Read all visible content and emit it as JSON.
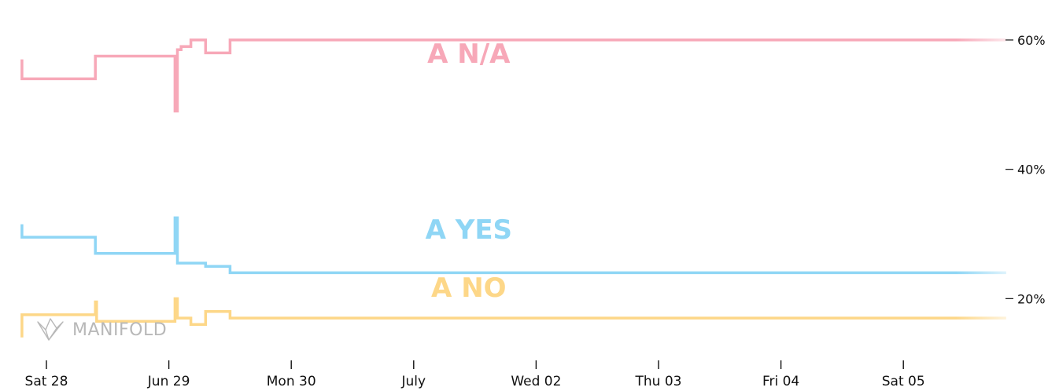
{
  "chart_data": {
    "type": "line",
    "x_ticks": [
      "Sat 28",
      "Jun 29",
      "Mon 30",
      "July",
      "Wed 02",
      "Thu 03",
      "Fri 04",
      "Sat 05"
    ],
    "y_ticks": [
      "20%",
      "40%",
      "60%"
    ],
    "ylim": [
      13,
      64
    ],
    "xlim": [
      -0.21,
      7.84
    ],
    "y_axis_position": "right",
    "grid": false,
    "legend": "inline labels",
    "series": [
      {
        "name": "A N/A",
        "color": "#f7a8b8",
        "points": [
          [
            -0.2,
            57
          ],
          [
            -0.2,
            54
          ],
          [
            0.4,
            54
          ],
          [
            0.4,
            57.5
          ],
          [
            1.05,
            57.5
          ],
          [
            1.05,
            49
          ],
          [
            1.07,
            49
          ],
          [
            1.07,
            58.5
          ],
          [
            1.1,
            58.5
          ],
          [
            1.1,
            59
          ],
          [
            1.18,
            59
          ],
          [
            1.18,
            60
          ],
          [
            1.3,
            60
          ],
          [
            1.3,
            58
          ],
          [
            1.5,
            58
          ],
          [
            1.5,
            60
          ],
          [
            7.84,
            60
          ]
        ]
      },
      {
        "name": "A YES",
        "color": "#8fd6f5",
        "points": [
          [
            -0.2,
            31.5
          ],
          [
            -0.2,
            29.5
          ],
          [
            0.4,
            29.5
          ],
          [
            0.4,
            27
          ],
          [
            1.05,
            27
          ],
          [
            1.05,
            32.5
          ],
          [
            1.07,
            32.5
          ],
          [
            1.07,
            25.5
          ],
          [
            1.3,
            25.5
          ],
          [
            1.3,
            25
          ],
          [
            1.5,
            25
          ],
          [
            1.5,
            24
          ],
          [
            7.84,
            24
          ]
        ]
      },
      {
        "name": "A NO",
        "color": "#fdd788",
        "points": [
          [
            -0.2,
            14
          ],
          [
            -0.2,
            17.5
          ],
          [
            0.4,
            17.5
          ],
          [
            0.4,
            19.5
          ],
          [
            0.41,
            19.5
          ],
          [
            0.41,
            16.5
          ],
          [
            1.05,
            16.5
          ],
          [
            1.05,
            20
          ],
          [
            1.07,
            20
          ],
          [
            1.07,
            17
          ],
          [
            1.18,
            17
          ],
          [
            1.18,
            16
          ],
          [
            1.3,
            16
          ],
          [
            1.3,
            18
          ],
          [
            1.5,
            18
          ],
          [
            1.5,
            17
          ],
          [
            7.84,
            17
          ]
        ]
      }
    ],
    "labels": [
      {
        "text": "A N/A",
        "x": 3.45,
        "y": 56.5,
        "color": "#f7a8b8"
      },
      {
        "text": "A YES",
        "x": 3.45,
        "y": 29.3,
        "color": "#8fd6f5"
      },
      {
        "text": "A NO",
        "x": 3.45,
        "y": 20.3,
        "color": "#fdd788"
      }
    ]
  },
  "watermark": {
    "text": "MANIFOLD",
    "icon": "crane-icon",
    "color": "#b8b8b8"
  }
}
